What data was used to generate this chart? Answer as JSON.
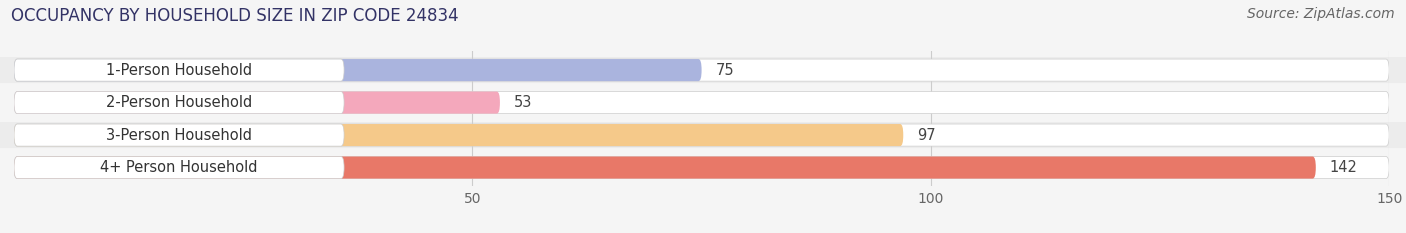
{
  "title": "OCCUPANCY BY HOUSEHOLD SIZE IN ZIP CODE 24834",
  "source": "Source: ZipAtlas.com",
  "categories": [
    "1-Person Household",
    "2-Person Household",
    "3-Person Household",
    "4+ Person Household"
  ],
  "values": [
    75,
    53,
    97,
    142
  ],
  "bar_colors": [
    "#aab4de",
    "#f4a8bc",
    "#f5c98a",
    "#e87868"
  ],
  "row_bg_colors": [
    "#ececec",
    "#f5f5f5",
    "#ececec",
    "#f5f5f5"
  ],
  "xlim": [
    0,
    150
  ],
  "xticks": [
    50,
    100,
    150
  ],
  "background_color": "#f5f5f5",
  "title_fontsize": 12,
  "label_fontsize": 10.5,
  "value_fontsize": 10.5,
  "source_fontsize": 10,
  "bar_height": 0.68
}
